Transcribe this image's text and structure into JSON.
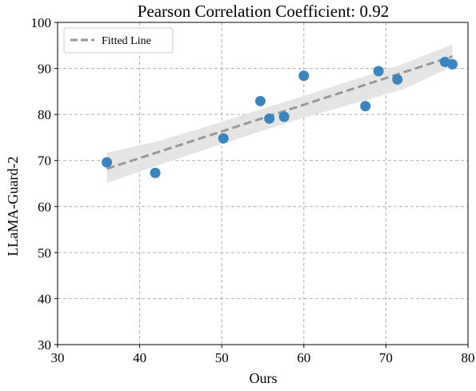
{
  "chart_data": {
    "type": "scatter",
    "title": "Pearson Correlation Coefficient: 0.92",
    "xlabel": "Ours",
    "ylabel": "LLaMA-Guard-2",
    "xlim": [
      30,
      80
    ],
    "ylim": [
      30,
      100
    ],
    "xticks": [
      "30",
      "40",
      "50",
      "60",
      "70",
      "80"
    ],
    "yticks": [
      "30",
      "40",
      "50",
      "60",
      "70",
      "80",
      "90",
      "100"
    ],
    "grid": true,
    "grid_style": "dashed",
    "legend": {
      "placement": "top-left",
      "entries": [
        "Fitted Line"
      ]
    },
    "points": {
      "color": "#3a84c0",
      "x": [
        36.0,
        41.9,
        50.2,
        54.7,
        55.8,
        57.6,
        60.0,
        67.5,
        69.1,
        71.4,
        77.2,
        78.1
      ],
      "y": [
        69.6,
        67.3,
        74.8,
        82.9,
        79.1,
        79.5,
        88.4,
        81.8,
        89.4,
        87.6,
        91.4,
        90.9
      ]
    },
    "fitted_line": {
      "name": "Fitted Line",
      "color": "#999999",
      "style": "dashed",
      "x": [
        36.0,
        78.1
      ],
      "y": [
        68.2,
        92.6
      ]
    },
    "confidence_band": {
      "color": "#e5e5e5",
      "x": [
        36.0,
        42.0,
        48.0,
        54.0,
        60.0,
        66.0,
        72.0,
        78.1
      ],
      "upper": [
        71.7,
        74.1,
        77.3,
        80.7,
        84.0,
        87.5,
        90.9,
        95.2
      ],
      "lower": [
        65.1,
        68.8,
        72.4,
        75.9,
        79.3,
        82.3,
        85.4,
        90.4
      ]
    }
  }
}
